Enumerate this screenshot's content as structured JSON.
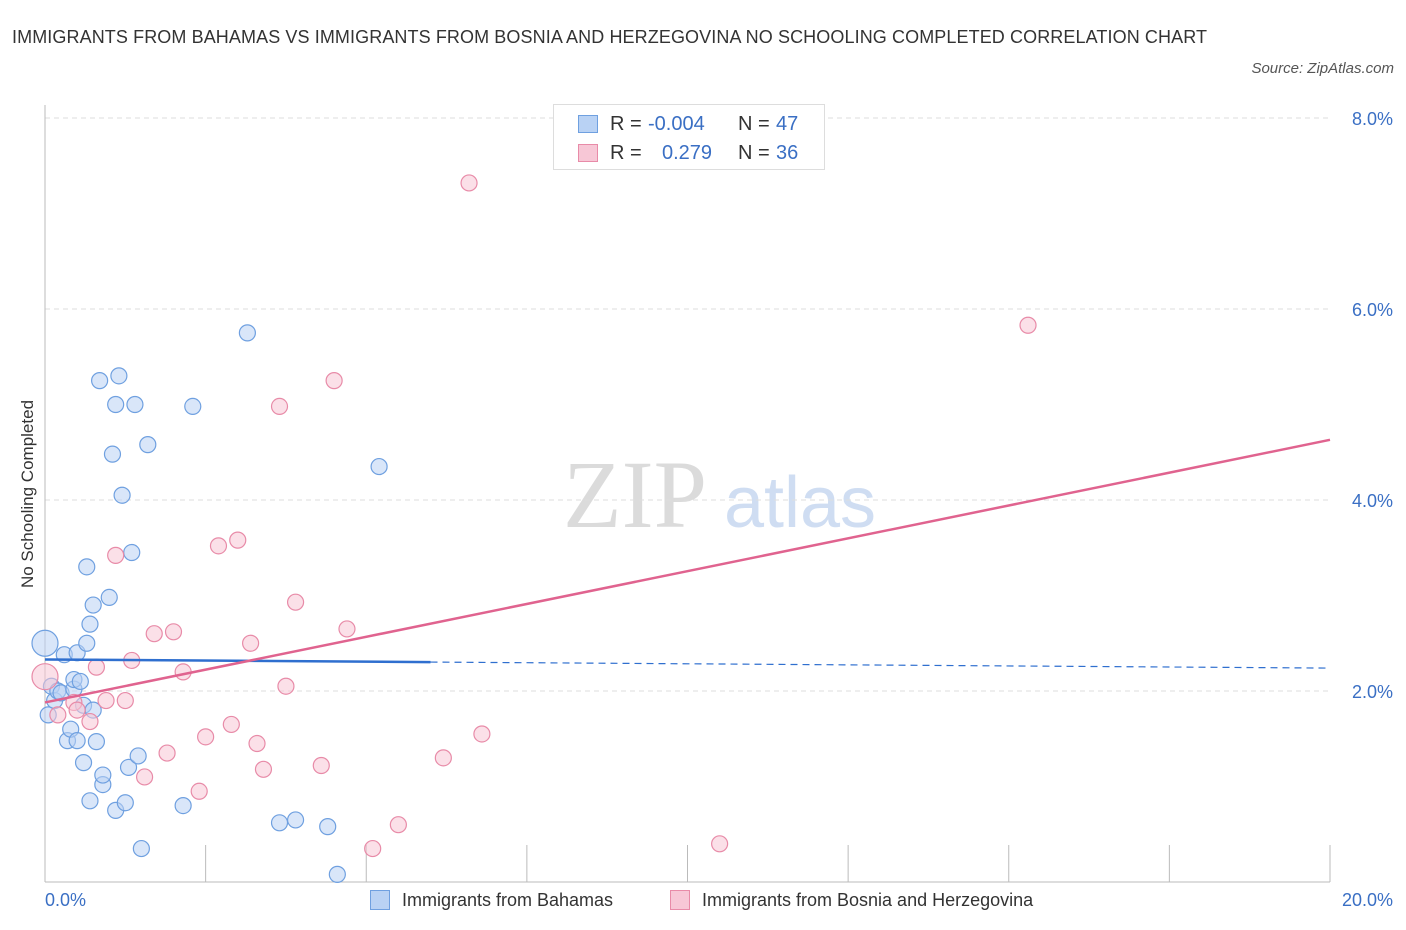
{
  "title": "IMMIGRANTS FROM BAHAMAS VS IMMIGRANTS FROM BOSNIA AND HERZEGOVINA NO SCHOOLING COMPLETED CORRELATION CHART",
  "source": "Source: ZipAtlas.com",
  "watermark": {
    "zip": "ZIP",
    "atlas": "atlas"
  },
  "legend_top": [
    {
      "r_label": "R =",
      "r_value": "-0.004",
      "n_label": "N =",
      "n_value": "47",
      "color": "#6fa0e0",
      "fill": "#b9d2f4"
    },
    {
      "r_label": "R =",
      "r_value": "0.279",
      "n_label": "N =",
      "n_value": "36",
      "color": "#e88ba8",
      "fill": "#f7c7d6"
    }
  ],
  "chart_data": {
    "type": "scatter",
    "ylabel": "No Schooling Completed",
    "xlim": [
      0,
      20
    ],
    "ylim": [
      0,
      8
    ],
    "x_tick_labels": [
      "0.0%",
      "20.0%"
    ],
    "y_ticks": [
      2,
      4,
      6,
      8
    ],
    "y_tick_labels": [
      "2.0%",
      "4.0%",
      "6.0%",
      "8.0%"
    ],
    "grid": true,
    "series": [
      {
        "name": "Immigrants from Bahamas",
        "color": "#6fa0e0",
        "fill": "#b9d2f4",
        "trend_color": "#2f6fcf",
        "trend": {
          "x0": 0,
          "y0": 2.33,
          "x_solid_end": 6.0,
          "x1": 20,
          "y1": 2.24
        },
        "points": [
          [
            0.0,
            2.5
          ],
          [
            0.05,
            1.75
          ],
          [
            0.1,
            2.05
          ],
          [
            0.15,
            1.9
          ],
          [
            0.2,
            2.0
          ],
          [
            0.25,
            1.98
          ],
          [
            0.3,
            2.38
          ],
          [
            0.35,
            1.48
          ],
          [
            0.4,
            1.6
          ],
          [
            0.45,
            2.02
          ],
          [
            0.5,
            1.48
          ],
          [
            0.45,
            2.12
          ],
          [
            0.5,
            2.4
          ],
          [
            0.6,
            1.25
          ],
          [
            0.55,
            2.1
          ],
          [
            0.6,
            1.85
          ],
          [
            0.65,
            2.5
          ],
          [
            0.7,
            2.7
          ],
          [
            0.65,
            3.3
          ],
          [
            0.7,
            0.85
          ],
          [
            0.75,
            2.9
          ],
          [
            0.75,
            1.8
          ],
          [
            0.8,
            1.47
          ],
          [
            0.85,
            5.25
          ],
          [
            0.9,
            1.02
          ],
          [
            0.9,
            1.12
          ],
          [
            1.0,
            2.98
          ],
          [
            1.05,
            4.48
          ],
          [
            1.1,
            5.0
          ],
          [
            1.1,
            0.75
          ],
          [
            1.15,
            5.3
          ],
          [
            1.2,
            4.05
          ],
          [
            1.25,
            0.83
          ],
          [
            1.3,
            1.2
          ],
          [
            1.35,
            3.45
          ],
          [
            1.4,
            5.0
          ],
          [
            1.45,
            1.32
          ],
          [
            1.5,
            0.35
          ],
          [
            1.6,
            4.58
          ],
          [
            2.15,
            0.8
          ],
          [
            2.3,
            4.98
          ],
          [
            3.15,
            5.75
          ],
          [
            3.65,
            0.62
          ],
          [
            3.9,
            0.65
          ],
          [
            4.4,
            0.58
          ],
          [
            4.55,
            0.08
          ],
          [
            5.2,
            4.35
          ]
        ]
      },
      {
        "name": "Immigrants from Bosnia and Herzegovina",
        "color": "#e88ba8",
        "fill": "#f7c7d6",
        "trend_color": "#e0638f",
        "trend": {
          "x0": 0,
          "y0": 1.88,
          "x1": 20,
          "y1": 4.63
        },
        "points": [
          [
            0.0,
            2.15
          ],
          [
            0.2,
            1.75
          ],
          [
            0.45,
            1.88
          ],
          [
            0.5,
            1.8
          ],
          [
            0.7,
            1.68
          ],
          [
            0.8,
            2.25
          ],
          [
            0.95,
            1.9
          ],
          [
            1.1,
            3.42
          ],
          [
            1.25,
            1.9
          ],
          [
            1.35,
            2.32
          ],
          [
            1.55,
            1.1
          ],
          [
            1.7,
            2.6
          ],
          [
            1.9,
            1.35
          ],
          [
            2.0,
            2.62
          ],
          [
            2.15,
            2.2
          ],
          [
            2.4,
            0.95
          ],
          [
            2.5,
            1.52
          ],
          [
            2.7,
            3.52
          ],
          [
            2.9,
            1.65
          ],
          [
            3.0,
            3.58
          ],
          [
            3.2,
            2.5
          ],
          [
            3.3,
            1.45
          ],
          [
            3.4,
            1.18
          ],
          [
            3.65,
            4.98
          ],
          [
            3.75,
            2.05
          ],
          [
            3.9,
            2.93
          ],
          [
            4.3,
            1.22
          ],
          [
            4.5,
            5.25
          ],
          [
            4.7,
            2.65
          ],
          [
            5.1,
            0.35
          ],
          [
            5.5,
            0.6
          ],
          [
            6.2,
            1.3
          ],
          [
            6.6,
            7.32
          ],
          [
            6.8,
            1.55
          ],
          [
            10.5,
            0.4
          ],
          [
            15.3,
            5.83
          ]
        ]
      }
    ]
  }
}
